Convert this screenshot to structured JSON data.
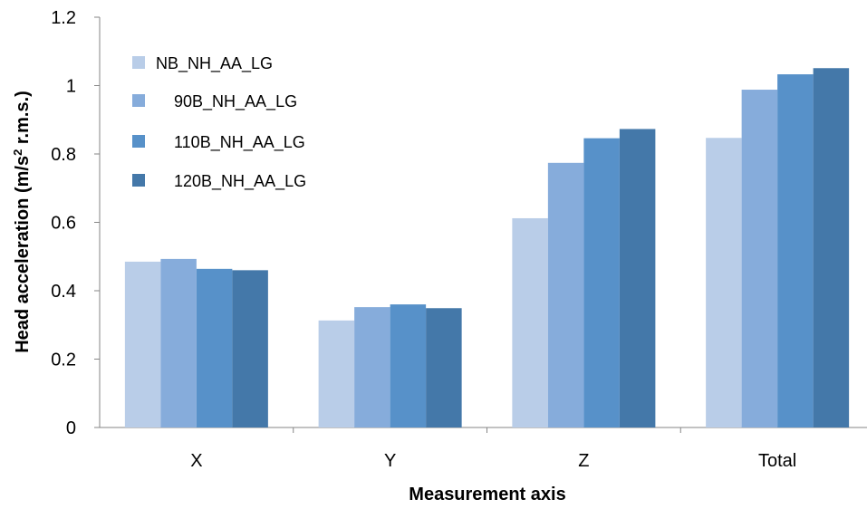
{
  "chart_data": {
    "type": "bar",
    "categories": [
      "X",
      "Y",
      "Z",
      "Total"
    ],
    "series": [
      {
        "name": "NB_NH_AA_LG",
        "values": [
          0.485,
          0.313,
          0.612,
          0.847
        ]
      },
      {
        "name": "90B_NH_AA_LG",
        "values": [
          0.493,
          0.352,
          0.774,
          0.988
        ]
      },
      {
        "name": "110B_NH_AA_LG",
        "values": [
          0.464,
          0.36,
          0.846,
          1.033
        ]
      },
      {
        "name": "120B_NH_AA_LG",
        "values": [
          0.46,
          0.349,
          0.873,
          1.051
        ]
      }
    ],
    "colors": [
      "#b9cde8",
      "#86acdb",
      "#5791c9",
      "#4478a9"
    ],
    "ylim": [
      0,
      1.2
    ],
    "yticks": [
      "0",
      "0.2",
      "0.4",
      "0.6",
      "0.8",
      "1",
      "1.2"
    ],
    "xlabel": "Measurement axis",
    "ylabel_main": "Head acceleration  (m/s",
    "ylabel_sup": "2",
    "ylabel_rest": " r.m.s.)",
    "legend_position": "top-left",
    "grid": false
  }
}
